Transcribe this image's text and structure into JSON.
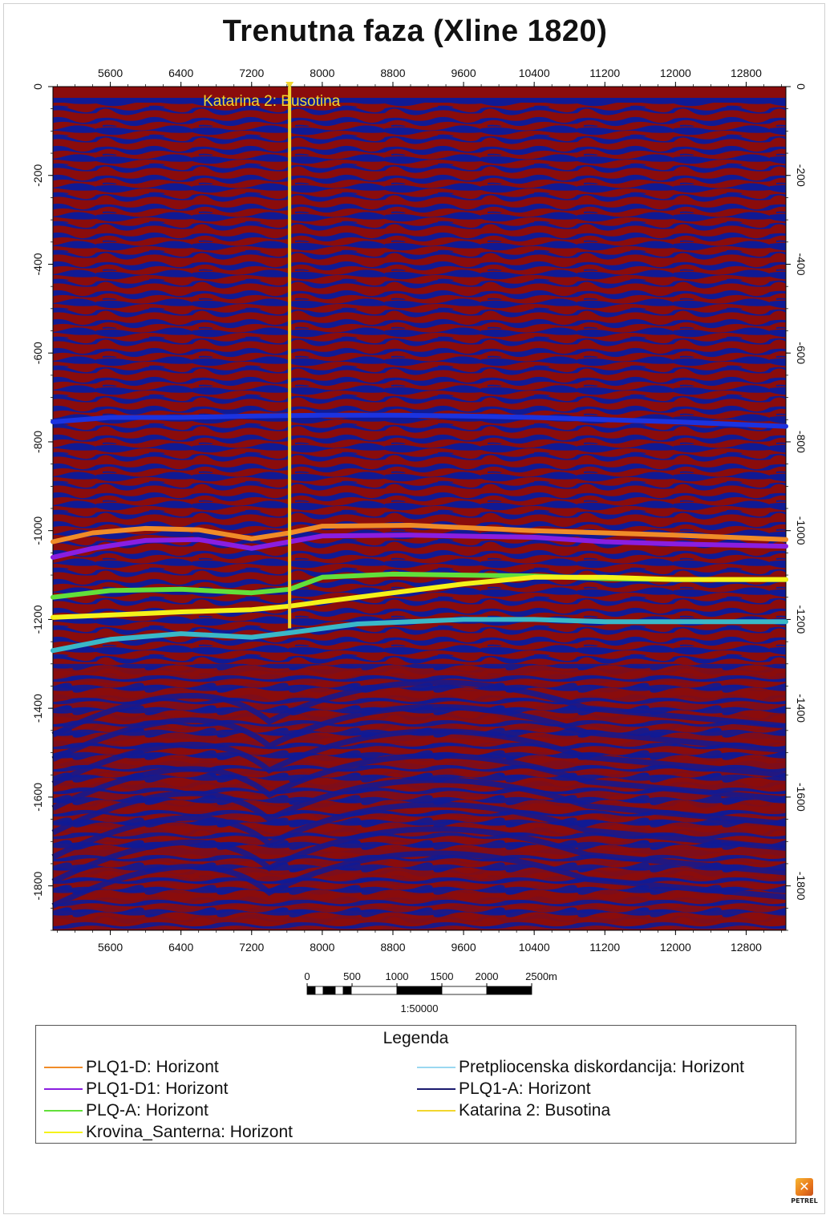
{
  "title": "Trenutna faza (Xline 1820)",
  "colors": {
    "seis_red": "#8a0c0c",
    "seis_blue": "#101a94",
    "well": "#f2d62e"
  },
  "axes": {
    "x_ticks": [
      "5600",
      "6400",
      "7200",
      "8000",
      "8800",
      "9600",
      "10400",
      "11200",
      "12000",
      "12800"
    ],
    "x_values": [
      5600,
      6400,
      7200,
      8000,
      8800,
      9600,
      10400,
      11200,
      12000,
      12800
    ],
    "x_range": [
      4950,
      13250
    ],
    "y_left_ticks": [
      "0",
      "-200",
      "-400",
      "-600",
      "-800",
      "-1000",
      "-1200",
      "-1400",
      "-1600",
      "-1800"
    ],
    "y_right_ticks": [
      "0",
      "-200",
      "-400",
      "-600",
      "-800",
      "-1000",
      "-1200",
      "-1400",
      "-1600",
      "-1800"
    ],
    "y_values": [
      0,
      -200,
      -400,
      -600,
      -800,
      -1000,
      -1200,
      -1400,
      -1600,
      -1800
    ],
    "y_range": [
      0,
      -1900
    ]
  },
  "well": {
    "label": "Katarina 2: Busotina",
    "x": 7630,
    "top": 0,
    "bottom": -1220
  },
  "horizons": [
    {
      "name": "Pretpliocenska diskordancija",
      "color": "#3ab8c8",
      "pts": [
        [
          4950,
          -1270
        ],
        [
          5600,
          -1245
        ],
        [
          6400,
          -1232
        ],
        [
          7200,
          -1240
        ],
        [
          7630,
          -1230
        ],
        [
          8400,
          -1210
        ],
        [
          9600,
          -1200
        ],
        [
          10400,
          -1200
        ],
        [
          11200,
          -1205
        ],
        [
          12000,
          -1205
        ],
        [
          13250,
          -1205
        ]
      ]
    },
    {
      "name": "PLQ1-A",
      "color": "#1b33e0",
      "pts": [
        [
          4950,
          -755
        ],
        [
          5600,
          -745
        ],
        [
          6400,
          -745
        ],
        [
          7200,
          -742
        ],
        [
          8000,
          -740
        ],
        [
          8800,
          -740
        ],
        [
          9600,
          -742
        ],
        [
          10400,
          -745
        ],
        [
          11200,
          -750
        ],
        [
          12000,
          -755
        ],
        [
          13250,
          -765
        ]
      ]
    },
    {
      "name": "PLQ1-D",
      "color": "#f08c28",
      "pts": [
        [
          4950,
          -1025
        ],
        [
          5400,
          -1005
        ],
        [
          6000,
          -995
        ],
        [
          6600,
          -998
        ],
        [
          7200,
          -1018
        ],
        [
          7630,
          -1005
        ],
        [
          8000,
          -990
        ],
        [
          9000,
          -988
        ],
        [
          10400,
          -1000
        ],
        [
          11200,
          -1005
        ],
        [
          12000,
          -1010
        ],
        [
          13250,
          -1020
        ]
      ]
    },
    {
      "name": "PLQ1-D1",
      "color": "#8a1ee0",
      "pts": [
        [
          4950,
          -1060
        ],
        [
          5400,
          -1040
        ],
        [
          6000,
          -1022
        ],
        [
          6600,
          -1020
        ],
        [
          7200,
          -1040
        ],
        [
          7630,
          -1025
        ],
        [
          8000,
          -1012
        ],
        [
          9000,
          -1010
        ],
        [
          10400,
          -1015
        ],
        [
          11200,
          -1025
        ],
        [
          12000,
          -1030
        ],
        [
          13250,
          -1035
        ]
      ]
    },
    {
      "name": "PLQ-A",
      "color": "#62e03a",
      "pts": [
        [
          4950,
          -1150
        ],
        [
          5600,
          -1135
        ],
        [
          6400,
          -1132
        ],
        [
          7200,
          -1140
        ],
        [
          7630,
          -1132
        ],
        [
          8000,
          -1105
        ],
        [
          8800,
          -1098
        ],
        [
          9600,
          -1100
        ],
        [
          10400,
          -1102
        ],
        [
          11200,
          -1108
        ],
        [
          12000,
          -1110
        ],
        [
          13250,
          -1110
        ]
      ]
    },
    {
      "name": "Krovina_Santerna",
      "color": "#f5f21a",
      "pts": [
        [
          4950,
          -1195
        ],
        [
          5600,
          -1190
        ],
        [
          6400,
          -1183
        ],
        [
          7200,
          -1178
        ],
        [
          7630,
          -1170
        ],
        [
          8000,
          -1160
        ],
        [
          8800,
          -1140
        ],
        [
          9600,
          -1120
        ],
        [
          10400,
          -1105
        ],
        [
          11200,
          -1105
        ],
        [
          12000,
          -1110
        ],
        [
          13250,
          -1110
        ]
      ]
    }
  ],
  "scale_bar": {
    "labels": [
      "0",
      "500",
      "1000",
      "1500",
      "2000",
      "2500m"
    ],
    "ratio": "1:50000"
  },
  "legend": {
    "title": "Legenda",
    "left": [
      {
        "label": "PLQ1-D: Horizont",
        "color": "#f08c28"
      },
      {
        "label": "PLQ1-D1: Horizont",
        "color": "#8a1ee0"
      },
      {
        "label": "PLQ-A: Horizont",
        "color": "#62e03a"
      },
      {
        "label": "Krovina_Santerna: Horizont",
        "color": "#f5f21a"
      }
    ],
    "right": [
      {
        "label": "Pretpliocenska  diskordancija: Horizont",
        "color": "#9ad8f0"
      },
      {
        "label": "PLQ1-A: Horizont",
        "color": "#1a1a6e"
      },
      {
        "label": "Katarina 2: Busotina",
        "color": "#f2d62e"
      }
    ]
  },
  "logo": {
    "text": "PETREL",
    "icon": "petrel-logo-icon"
  }
}
